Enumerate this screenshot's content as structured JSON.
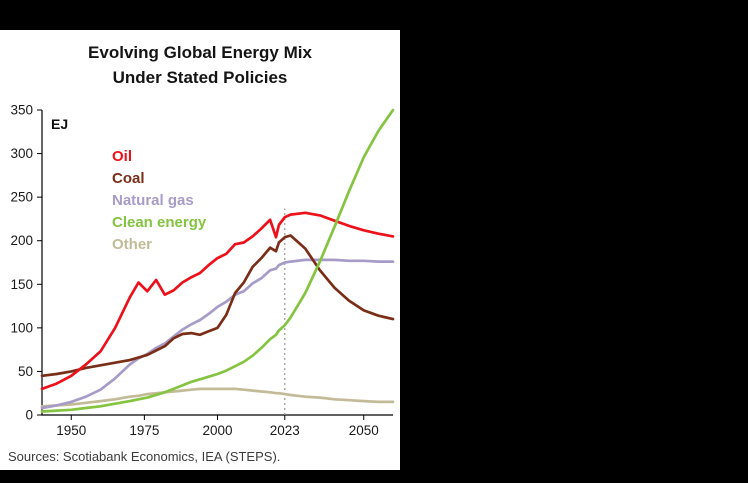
{
  "title": {
    "line1": "Evolving Global Energy Mix",
    "line2": "Under Stated Policies"
  },
  "source": "Sources: Scotiabank Economics, IEA (STEPS).",
  "chart_data": {
    "type": "line",
    "title": "Evolving Global Energy Mix Under Stated Policies",
    "xlabel": "",
    "ylabel": "EJ",
    "ylim": [
      0,
      350
    ],
    "yticks": [
      0,
      50,
      100,
      150,
      200,
      250,
      300,
      350
    ],
    "xlim": [
      1940,
      2060
    ],
    "xticks": [
      1950,
      1975,
      2000,
      2023,
      2050
    ],
    "grid": false,
    "legend_position": "upper-left-inside",
    "annotation_line": {
      "x": 2023,
      "top_value": 237,
      "style": "dotted",
      "color": "#9e9e9e"
    },
    "x": [
      1940,
      1945,
      1950,
      1955,
      1960,
      1965,
      1970,
      1973,
      1976,
      1979,
      1982,
      1985,
      1988,
      1991,
      1994,
      1997,
      2000,
      2003,
      2006,
      2009,
      2012,
      2015,
      2018,
      2020,
      2021,
      2023,
      2025,
      2030,
      2035,
      2040,
      2045,
      2050,
      2055,
      2060
    ],
    "series": [
      {
        "name": "Oil",
        "color": "#ec111a",
        "values": [
          30,
          36,
          45,
          58,
          73,
          100,
          135,
          152,
          142,
          155,
          138,
          143,
          152,
          158,
          163,
          172,
          180,
          185,
          196,
          198,
          205,
          214,
          224,
          204,
          218,
          227,
          230,
          232,
          229,
          223,
          217,
          212,
          208,
          205
        ]
      },
      {
        "name": "Coal",
        "color": "#7a2e17",
        "values": [
          45,
          47,
          50,
          54,
          57,
          60,
          63,
          66,
          69,
          74,
          79,
          88,
          93,
          94,
          92,
          96,
          100,
          115,
          140,
          152,
          170,
          180,
          192,
          188,
          198,
          204,
          206,
          191,
          166,
          146,
          131,
          120,
          114,
          110
        ]
      },
      {
        "name": "Natural gas",
        "color": "#a79cc8",
        "values": [
          8,
          11,
          15,
          21,
          29,
          42,
          58,
          65,
          70,
          77,
          82,
          90,
          98,
          104,
          109,
          116,
          124,
          130,
          138,
          142,
          151,
          157,
          166,
          168,
          172,
          175,
          176,
          178,
          178,
          178,
          177,
          177,
          176,
          176
        ]
      },
      {
        "name": "Clean energy",
        "color": "#84c440",
        "values": [
          4,
          5,
          6,
          8,
          10,
          13,
          16,
          18,
          20,
          23,
          26,
          30,
          34,
          38,
          41,
          44,
          47,
          51,
          56,
          61,
          68,
          77,
          87,
          92,
          97,
          103,
          112,
          140,
          176,
          216,
          257,
          296,
          326,
          350
        ]
      },
      {
        "name": "Other",
        "color": "#c3bb98",
        "values": [
          10,
          11,
          12,
          14,
          16,
          18,
          21,
          22,
          24,
          25,
          26,
          27,
          28,
          29,
          30,
          30,
          30,
          30,
          30,
          29,
          28,
          27,
          26,
          25,
          25,
          24,
          23,
          21,
          20,
          18,
          17,
          16,
          15,
          15
        ]
      }
    ]
  }
}
